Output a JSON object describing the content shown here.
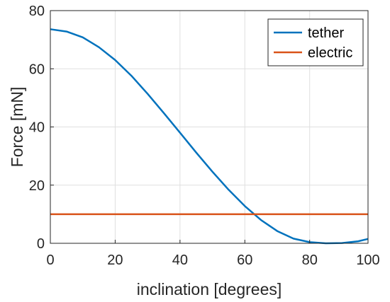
{
  "chart_data": {
    "type": "line",
    "xlabel": "inclination [degrees]",
    "ylabel": "Force [mN]",
    "xlim": [
      0,
      98
    ],
    "ylim": [
      0,
      80
    ],
    "xticks": [
      0,
      20,
      40,
      60,
      80,
      100
    ],
    "yticks": [
      0,
      20,
      40,
      60,
      80
    ],
    "grid": true,
    "legend_position": "top-right",
    "series": [
      {
        "name": "tether",
        "color": "#0072BD",
        "x": [
          0,
          5,
          10,
          15,
          20,
          25,
          30,
          35,
          40,
          45,
          50,
          55,
          60,
          65,
          70,
          75,
          80,
          85,
          90,
          95,
          98
        ],
        "y": [
          73.6,
          72.8,
          70.8,
          67.4,
          63.0,
          57.6,
          51.4,
          44.8,
          38.0,
          31.2,
          24.6,
          18.4,
          12.8,
          8.0,
          4.2,
          1.6,
          0.4,
          0.0,
          0.1,
          0.7,
          1.5
        ]
      },
      {
        "name": "electric",
        "color": "#D95319",
        "x": [
          0,
          98
        ],
        "y": [
          10,
          10
        ]
      }
    ]
  }
}
